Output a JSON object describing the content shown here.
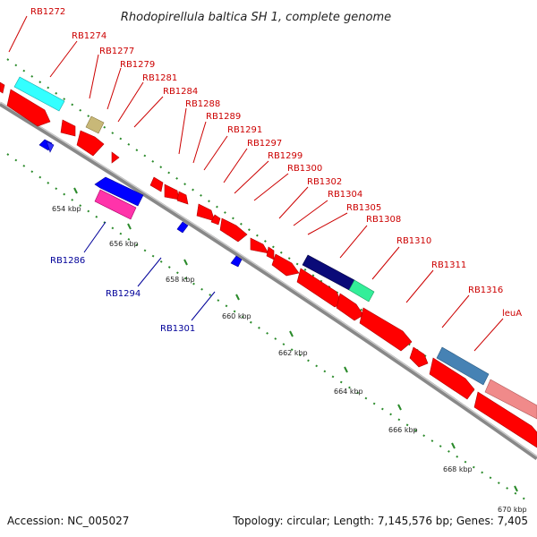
{
  "title": "Rhodopirellula baltica SH 1, complete genome",
  "footer": {
    "accession": "Accession: NC_005027",
    "summary": "Topology: circular; Length: 7,145,576 bp; Genes: 7,405"
  },
  "ruler_labels": [
    "654 kbp",
    "656 kbp",
    "658 kbp",
    "660 kbp",
    "662 kbp",
    "664 kbp",
    "666 kbp",
    "668 kbp",
    "670 kbp"
  ],
  "forward_gene_labels": [
    "RB1272",
    "RB1274",
    "RB1277",
    "RB1279",
    "RB1281",
    "RB1284",
    "RB1288",
    "RB1289",
    "RB1291",
    "RB1297",
    "RB1299",
    "RB1300",
    "RB1302",
    "RB1304",
    "RB1305",
    "RB1308",
    "RB1310",
    "RB1311",
    "RB1316",
    "leuA"
  ],
  "reverse_gene_labels": [
    "RB1286",
    "RB1294",
    "RB1301"
  ],
  "colors": {
    "gene_red": "#ff0000",
    "forward_label": "#cc0000",
    "reverse_label": "#000099",
    "backbone": "#888888",
    "ruler_dots": "#2a8a2a",
    "cyan": "#33ffff",
    "khaki": "#c8b878",
    "blue": "#0000ff",
    "magenta": "#ff33aa",
    "navy": "#0a0a78",
    "mint": "#33ee99",
    "steelblue": "#4682b4",
    "pink": "#f08a8a"
  }
}
